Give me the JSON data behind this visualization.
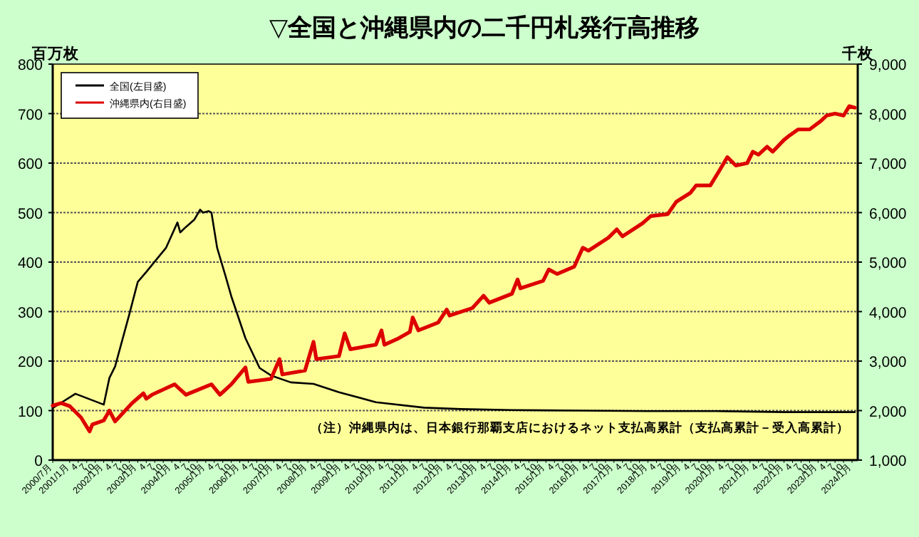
{
  "chart_data": {
    "type": "line",
    "title": "▽全国と沖縄県内の二千円札発行高推移",
    "ylabel": "百万枚",
    "y2label": "千枚",
    "annotations": [
      "（注）沖縄県内は、日本銀行那覇支店におけるネット支払高累計（支払高累計－受入高累計）"
    ],
    "legend": "top left",
    "grid": "y",
    "xlim": [
      "2000-07",
      "2024-03"
    ],
    "xticks": [
      {
        "value": "2000-07",
        "label": "2000/7月"
      },
      {
        "value": "2001-01",
        "label": "2001/1月"
      },
      {
        "value": "2001-04",
        "label": "4"
      },
      {
        "value": "2001-07",
        "label": "7"
      },
      {
        "value": "2001-10",
        "label": "10"
      },
      {
        "value": "2002-01",
        "label": "2002/1月"
      },
      {
        "value": "2002-04",
        "label": "4"
      },
      {
        "value": "2002-07",
        "label": "7"
      },
      {
        "value": "2002-10",
        "label": "10"
      },
      {
        "value": "2003-01",
        "label": "2003/1月"
      },
      {
        "value": "2003-04",
        "label": "4"
      },
      {
        "value": "2003-07",
        "label": "7"
      },
      {
        "value": "2003-10",
        "label": "10"
      },
      {
        "value": "2004-01",
        "label": "2004/1月"
      },
      {
        "value": "2004-04",
        "label": "4"
      },
      {
        "value": "2004-07",
        "label": "7"
      },
      {
        "value": "2004-10",
        "label": "10"
      },
      {
        "value": "2005-01",
        "label": "2005/1月"
      },
      {
        "value": "2005-04",
        "label": "4"
      },
      {
        "value": "2005-07",
        "label": "7"
      },
      {
        "value": "2005-10",
        "label": "10"
      },
      {
        "value": "2006-01",
        "label": "2006/1月"
      },
      {
        "value": "2006-04",
        "label": "4"
      },
      {
        "value": "2006-07",
        "label": "7"
      },
      {
        "value": "2006-10",
        "label": "10"
      },
      {
        "value": "2007-01",
        "label": "2007/1月"
      },
      {
        "value": "2007-04",
        "label": "4"
      },
      {
        "value": "2007-07",
        "label": "7"
      },
      {
        "value": "2007-10",
        "label": "10"
      },
      {
        "value": "2008-01",
        "label": "2008/1月"
      },
      {
        "value": "2008-04",
        "label": "4"
      },
      {
        "value": "2008-07",
        "label": "7"
      },
      {
        "value": "2008-10",
        "label": "10"
      },
      {
        "value": "2009-01",
        "label": "2009/1月"
      },
      {
        "value": "2009-04",
        "label": "4"
      },
      {
        "value": "2009-07",
        "label": "7"
      },
      {
        "value": "2009-10",
        "label": "10"
      },
      {
        "value": "2010-01",
        "label": "2010/1月"
      },
      {
        "value": "2010-04",
        "label": "4"
      },
      {
        "value": "2010-07",
        "label": "7"
      },
      {
        "value": "2010-10",
        "label": "10"
      },
      {
        "value": "2011-01",
        "label": "2011/1月"
      },
      {
        "value": "2011-04",
        "label": "4"
      },
      {
        "value": "2011-07",
        "label": "7"
      },
      {
        "value": "2011-10",
        "label": "10"
      },
      {
        "value": "2012-01",
        "label": "2012/1月"
      },
      {
        "value": "2012-04",
        "label": "4"
      },
      {
        "value": "2012-07",
        "label": "7"
      },
      {
        "value": "2012-10",
        "label": "10"
      },
      {
        "value": "2013-01",
        "label": "2013/1月"
      },
      {
        "value": "2013-04",
        "label": "4"
      },
      {
        "value": "2013-07",
        "label": "7"
      },
      {
        "value": "2013-10",
        "label": "10"
      },
      {
        "value": "2014-01",
        "label": "2014/1月"
      },
      {
        "value": "2014-04",
        "label": "4"
      },
      {
        "value": "2014-07",
        "label": "7"
      },
      {
        "value": "2014-10",
        "label": "10"
      },
      {
        "value": "2015-01",
        "label": "2015/1月"
      },
      {
        "value": "2015-04",
        "label": "4"
      },
      {
        "value": "2015-07",
        "label": "7"
      },
      {
        "value": "2015-10",
        "label": "10"
      },
      {
        "value": "2016-01",
        "label": "2016/1月"
      },
      {
        "value": "2016-04",
        "label": "4"
      },
      {
        "value": "2016-07",
        "label": "7"
      },
      {
        "value": "2016-10",
        "label": "10"
      },
      {
        "value": "2017-01",
        "label": "2017/1月"
      },
      {
        "value": "2017-04",
        "label": "4"
      },
      {
        "value": "2017-07",
        "label": "7"
      },
      {
        "value": "2017-10",
        "label": "10"
      },
      {
        "value": "2018-01",
        "label": "2018/1月"
      },
      {
        "value": "2018-04",
        "label": "4"
      },
      {
        "value": "2018-07",
        "label": "7"
      },
      {
        "value": "2018-10",
        "label": "10"
      },
      {
        "value": "2019-01",
        "label": "2019/1月"
      },
      {
        "value": "2019-04",
        "label": "4"
      },
      {
        "value": "2019-07",
        "label": "7"
      },
      {
        "value": "2019-10",
        "label": "10"
      },
      {
        "value": "2020-01",
        "label": "2020/1月"
      },
      {
        "value": "2020-04",
        "label": "4"
      },
      {
        "value": "2020-07",
        "label": "7"
      },
      {
        "value": "2020-10",
        "label": "10"
      },
      {
        "value": "2021-01",
        "label": "2021/1月"
      },
      {
        "value": "2021-04",
        "label": "4"
      },
      {
        "value": "2021-07",
        "label": "7"
      },
      {
        "value": "2021-10",
        "label": "10"
      },
      {
        "value": "2022-01",
        "label": "2022/1月"
      },
      {
        "value": "2022-04",
        "label": "4"
      },
      {
        "value": "2022-07",
        "label": "7"
      },
      {
        "value": "2022-10",
        "label": "10"
      },
      {
        "value": "2023-01",
        "label": "2023/1月"
      },
      {
        "value": "2023-04",
        "label": "4"
      },
      {
        "value": "2023-07",
        "label": "7"
      },
      {
        "value": "2023-10",
        "label": "10"
      },
      {
        "value": "2024-01",
        "label": "2024/1月"
      }
    ],
    "ylim": [
      0,
      800
    ],
    "yticks": [
      0,
      100,
      200,
      300,
      400,
      500,
      600,
      700,
      800
    ],
    "y2lim": [
      1000,
      9000
    ],
    "y2ticks": [
      {
        "value": 1000,
        "label": "1,000"
      },
      {
        "value": 2000,
        "label": "2,000"
      },
      {
        "value": 3000,
        "label": "3,000"
      },
      {
        "value": 4000,
        "label": "4,000"
      },
      {
        "value": 5000,
        "label": "5,000"
      },
      {
        "value": 6000,
        "label": "6,000"
      },
      {
        "value": 7000,
        "label": "7,000"
      },
      {
        "value": 8000,
        "label": "8,000"
      },
      {
        "value": 9000,
        "label": "9,000"
      }
    ],
    "series": [
      {
        "name": "全国(左目盛)",
        "color": "#000000",
        "x": [
          "2000-07",
          "2001-03",
          "2002-01",
          "2002-03",
          "2002-05",
          "2002-10",
          "2003-01",
          "2003-04",
          "2003-08",
          "2003-11",
          "2004-03",
          "2004-04",
          "2004-06",
          "2004-09",
          "2004-11",
          "2004-12",
          "2005-02",
          "2005-03",
          "2005-05",
          "2005-08",
          "2005-10",
          "2006-03",
          "2006-08",
          "2006-12",
          "2007-07",
          "2008-03",
          "2008-12",
          "2010-01",
          "2011-06",
          "2012-07",
          "2014-01",
          "2016-01",
          "2018-01",
          "2020-01",
          "2022-01",
          "2024-02"
        ],
        "values": [
          105,
          134,
          112,
          166,
          189,
          294,
          360,
          380,
          408,
          429,
          480,
          460,
          471,
          486,
          506,
          500,
          503,
          500,
          429,
          371,
          331,
          246,
          186,
          171,
          157,
          154,
          137,
          117,
          106,
          103,
          101,
          100,
          99,
          99,
          97,
          97
        ]
      },
      {
        "name": "沖縄県内(右目盛)",
        "color": "#dd0000",
        "axis": "y2",
        "x": [
          "2000-07",
          "2000-10",
          "2001-01",
          "2001-05",
          "2001-08",
          "2001-09",
          "2002-01",
          "2002-03",
          "2002-05",
          "2002-11",
          "2003-03",
          "2003-04",
          "2003-06",
          "2004-02",
          "2004-06",
          "2005-03",
          "2005-06",
          "2005-10",
          "2006-03",
          "2006-04",
          "2006-12",
          "2007-03",
          "2007-04",
          "2007-12",
          "2008-03",
          "2008-04",
          "2008-12",
          "2009-02",
          "2009-04",
          "2010-01",
          "2010-03",
          "2010-04",
          "2010-09",
          "2011-01",
          "2011-02",
          "2011-04",
          "2011-11",
          "2012-02",
          "2012-03",
          "2012-11",
          "2013-03",
          "2013-05",
          "2014-01",
          "2014-03",
          "2014-04",
          "2014-12",
          "2015-02",
          "2015-05",
          "2015-11",
          "2016-02",
          "2016-04",
          "2016-11",
          "2017-02",
          "2017-04",
          "2017-11",
          "2018-02",
          "2018-08",
          "2018-11",
          "2019-04",
          "2019-06",
          "2019-11",
          "2020-02",
          "2020-05",
          "2020-08",
          "2020-12",
          "2021-02",
          "2021-04",
          "2021-07",
          "2021-09",
          "2022-01",
          "2022-03",
          "2022-06",
          "2022-10",
          "2023-02",
          "2023-04",
          "2023-07",
          "2023-10",
          "2023-12",
          "2024-02"
        ],
        "values": [
          2100,
          2150,
          2090,
          1860,
          1580,
          1720,
          1800,
          2000,
          1780,
          2150,
          2350,
          2240,
          2320,
          2530,
          2320,
          2530,
          2320,
          2530,
          2870,
          2580,
          2640,
          3040,
          2730,
          2810,
          3390,
          3040,
          3100,
          3560,
          3240,
          3330,
          3620,
          3330,
          3460,
          3590,
          3880,
          3620,
          3780,
          4040,
          3920,
          4070,
          4320,
          4180,
          4360,
          4650,
          4470,
          4620,
          4850,
          4760,
          4910,
          5290,
          5230,
          5490,
          5660,
          5520,
          5780,
          5930,
          5970,
          6220,
          6400,
          6550,
          6550,
          6830,
          7120,
          6950,
          7000,
          7230,
          7170,
          7330,
          7230,
          7470,
          7560,
          7680,
          7680,
          7850,
          7960,
          8000,
          7960,
          8150,
          8120
        ]
      }
    ]
  }
}
